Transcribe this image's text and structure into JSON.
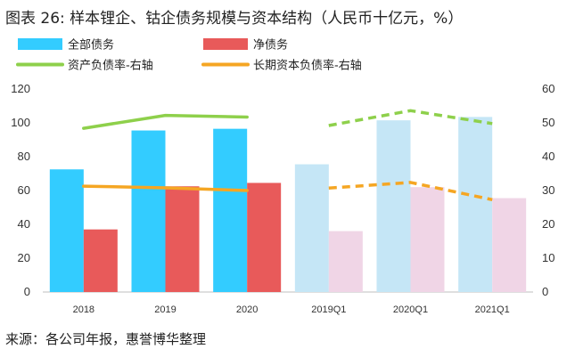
{
  "title": "图表 26: 样本锂企、钴企债务规模与资本结构（人民币十亿元，%）",
  "source": "来源：各公司年报，惠誉博华整理",
  "chart_data": {
    "type": "bar",
    "categories": [
      "2018",
      "2019",
      "2020",
      "2019Q1",
      "2020Q1",
      "2021Q1"
    ],
    "ylim": [
      0,
      120
    ],
    "ylim_right": [
      0,
      60
    ],
    "yticks": [
      "0",
      "20",
      "40",
      "60",
      "80",
      "100",
      "120"
    ],
    "yticks_right": [
      "0",
      "10",
      "20",
      "30",
      "40",
      "50",
      "60"
    ],
    "grid": false,
    "legend_position": "top-left",
    "series": [
      {
        "name": "全部债务",
        "type": "bar",
        "axis": "left",
        "color": "#33ccff",
        "faded_color": "#c5e6f6",
        "values": [
          72.5,
          95.5,
          96.5,
          75.5,
          101.5,
          103.5
        ]
      },
      {
        "name": "净债务",
        "type": "bar",
        "axis": "left",
        "color": "#e85a5a",
        "faded_color": "#f0d5e6",
        "values": [
          37,
          62.5,
          64.5,
          36,
          62,
          55.5
        ]
      },
      {
        "name": "资产负债率-右轴",
        "type": "line",
        "axis": "right",
        "color": "#8ed04b",
        "values": [
          48.4,
          52.2,
          51.7,
          49.2,
          53.6,
          49.8
        ]
      },
      {
        "name": "长期资本负债率-右轴",
        "type": "line",
        "axis": "right",
        "color": "#f5a623",
        "values": [
          31.3,
          30.8,
          30.0,
          30.7,
          32.4,
          27.3
        ]
      }
    ]
  }
}
